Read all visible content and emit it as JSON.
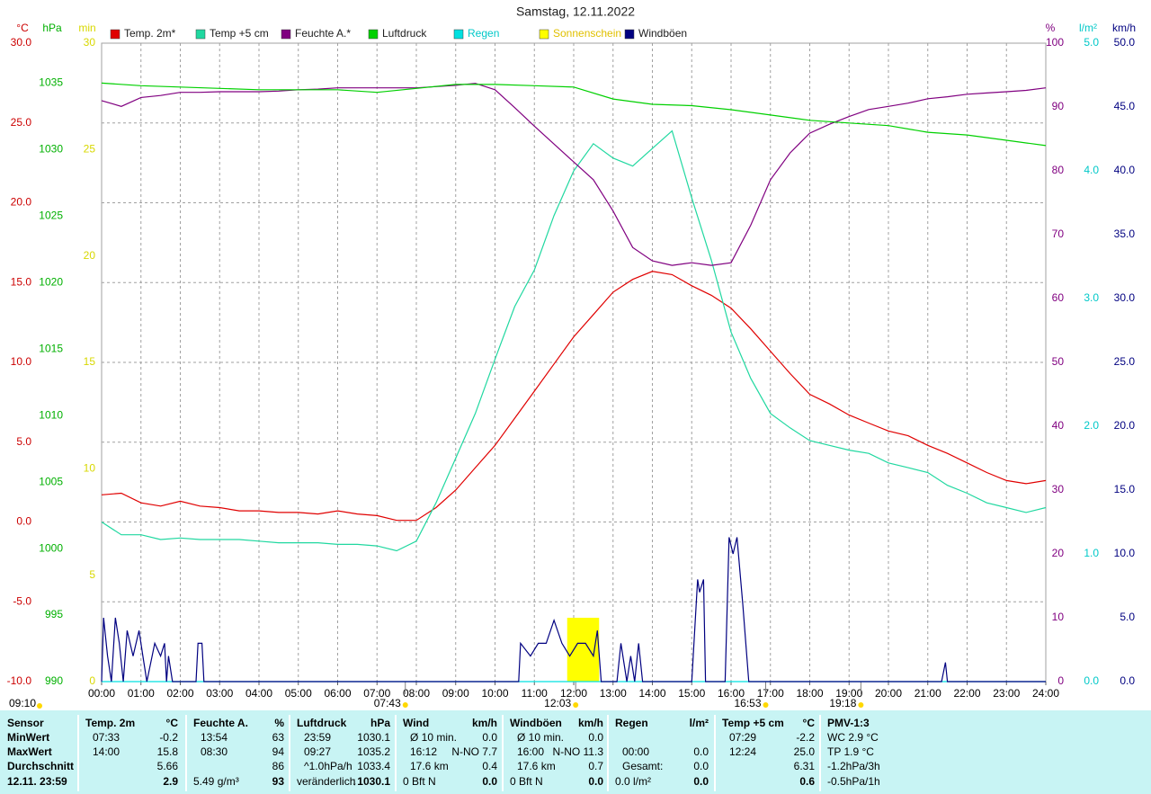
{
  "chart_data": {
    "type": "line",
    "title": "Samstag, 12.11.2022",
    "grid": true,
    "xlim": [
      0,
      24
    ],
    "xticks": [
      {
        "value": 0,
        "label": "00:00"
      },
      {
        "value": 1,
        "label": "01:00"
      },
      {
        "value": 2,
        "label": "02:00"
      },
      {
        "value": 3,
        "label": "03:00"
      },
      {
        "value": 4,
        "label": "04:00"
      },
      {
        "value": 5,
        "label": "05:00"
      },
      {
        "value": 6,
        "label": "06:00"
      },
      {
        "value": 7,
        "label": "07:00"
      },
      {
        "value": 8,
        "label": "08:00"
      },
      {
        "value": 9,
        "label": "09:00"
      },
      {
        "value": 10,
        "label": "10:00"
      },
      {
        "value": 11,
        "label": "11:00"
      },
      {
        "value": 12,
        "label": "12:00"
      },
      {
        "value": 13,
        "label": "13:00"
      },
      {
        "value": 14,
        "label": "14:00"
      },
      {
        "value": 15,
        "label": "15:00"
      },
      {
        "value": 16,
        "label": "16:00"
      },
      {
        "value": 17,
        "label": "17:00"
      },
      {
        "value": 18,
        "label": "18:00"
      },
      {
        "value": 19,
        "label": "19:00"
      },
      {
        "value": 20,
        "label": "20:00"
      },
      {
        "value": 21,
        "label": "21:00"
      },
      {
        "value": 22,
        "label": "22:00"
      },
      {
        "value": 23,
        "label": "23:00"
      },
      {
        "value": 24,
        "label": "24:00"
      }
    ],
    "x": [
      0,
      0.5,
      1,
      1.5,
      2,
      2.5,
      3,
      3.5,
      4,
      4.5,
      5,
      5.5,
      6,
      6.5,
      7,
      7.5,
      8,
      8.5,
      9,
      9.5,
      10,
      10.5,
      11,
      11.5,
      12,
      12.5,
      13,
      13.5,
      14,
      14.5,
      15,
      15.5,
      16,
      16.5,
      17,
      17.5,
      18,
      18.5,
      19,
      19.5,
      20,
      20.5,
      21,
      21.5,
      22,
      22.5,
      23,
      23.5,
      24
    ],
    "axes": {
      "y": {
        "label": "°C",
        "color": "#cc0000",
        "lim": [
          -10,
          30
        ],
        "ticks": [
          {
            "value": 30,
            "label": "30.0"
          },
          {
            "value": 25,
            "label": "25.0"
          },
          {
            "value": 20,
            "label": "20.0"
          },
          {
            "value": 15,
            "label": "15.0"
          },
          {
            "value": 10,
            "label": "10.0"
          },
          {
            "value": 5,
            "label": "5.0"
          },
          {
            "value": 0,
            "label": "0.0"
          },
          {
            "value": -5,
            "label": "-5.0"
          },
          {
            "value": -10,
            "label": "-10.0"
          }
        ]
      },
      "y2": {
        "label": "hPa",
        "color": "#00b000",
        "lim": [
          990,
          1038
        ],
        "ticks": [
          1035,
          1030,
          1025,
          1020,
          1015,
          1010,
          1005,
          1000,
          995,
          990
        ]
      },
      "y3": {
        "label": "min",
        "color": "#d8d800",
        "lim": [
          0,
          30
        ],
        "ticks": [
          30,
          25,
          20,
          15,
          10,
          5,
          0
        ]
      },
      "y4": {
        "label": "%",
        "color": "#800080",
        "lim": [
          0,
          100
        ],
        "ticks": [
          100,
          90,
          80,
          70,
          60,
          50,
          40,
          30,
          20,
          10,
          0
        ]
      },
      "y5": {
        "label": "l/m²",
        "color": "#00c8c8",
        "lim": [
          0,
          5
        ],
        "ticks": [
          {
            "value": 5,
            "label": "5.0"
          },
          {
            "value": 4,
            "label": "4.0"
          },
          {
            "value": 3,
            "label": "3.0"
          },
          {
            "value": 2,
            "label": "2.0"
          },
          {
            "value": 1,
            "label": "1.0"
          },
          {
            "value": 0,
            "label": "0.0"
          }
        ]
      },
      "y6": {
        "label": "km/h",
        "color": "#000080",
        "lim": [
          0,
          50
        ],
        "ticks": [
          {
            "value": 50,
            "label": "50.0"
          },
          {
            "value": 45,
            "label": "45.0"
          },
          {
            "value": 40,
            "label": "40.0"
          },
          {
            "value": 35,
            "label": "35.0"
          },
          {
            "value": 30,
            "label": "30.0"
          },
          {
            "value": 25,
            "label": "25.0"
          },
          {
            "value": 20,
            "label": "20.0"
          },
          {
            "value": 15,
            "label": "15.0"
          },
          {
            "value": 10,
            "label": "10.0"
          },
          {
            "value": 5,
            "label": "5.0"
          },
          {
            "value": 0,
            "label": "0.0"
          }
        ]
      }
    },
    "series": [
      {
        "name": "Temp. 2m*",
        "color": "#e00000",
        "axis": "y",
        "values": [
          1.7,
          1.8,
          1.2,
          1.0,
          1.3,
          1.0,
          0.9,
          0.7,
          0.7,
          0.6,
          0.6,
          0.5,
          0.7,
          0.5,
          0.4,
          0.1,
          0.1,
          0.9,
          2.0,
          3.4,
          4.8,
          6.5,
          8.2,
          9.9,
          11.6,
          13.0,
          14.4,
          15.2,
          15.7,
          15.5,
          14.8,
          14.2,
          13.4,
          12.1,
          10.7,
          9.3,
          8.0,
          7.4,
          6.7,
          6.2,
          5.7,
          5.4,
          4.8,
          4.3,
          3.7,
          3.1,
          2.6,
          2.4,
          2.6
        ]
      },
      {
        "name": "Temp +5 cm",
        "color": "#20d8a0",
        "axis": "y",
        "values": [
          0.0,
          -0.8,
          -0.8,
          -1.1,
          -1.0,
          -1.1,
          -1.1,
          -1.1,
          -1.2,
          -1.3,
          -1.3,
          -1.3,
          -1.4,
          -1.4,
          -1.5,
          -1.8,
          -1.2,
          1.2,
          4.0,
          6.8,
          10.2,
          13.5,
          15.8,
          19.2,
          22.0,
          23.7,
          22.8,
          22.3,
          23.4,
          24.5,
          20.3,
          16.4,
          11.9,
          9.0,
          6.8,
          5.9,
          5.1,
          4.8,
          4.5,
          4.3,
          3.7,
          3.4,
          3.1,
          2.3,
          1.8,
          1.2,
          0.9,
          0.6,
          0.9
        ]
      },
      {
        "name": "Feuchte A.*",
        "color": "#800080",
        "axis": "y4",
        "values": [
          91.0,
          90.1,
          91.5,
          91.8,
          92.3,
          92.3,
          92.4,
          92.4,
          92.4,
          92.5,
          92.7,
          92.8,
          93.0,
          93.0,
          93.0,
          93.0,
          93.0,
          93.2,
          93.4,
          93.7,
          92.7,
          89.9,
          87.0,
          84.2,
          81.4,
          78.6,
          73.7,
          68.0,
          65.9,
          65.2,
          65.6,
          65.2,
          65.6,
          71.5,
          78.6,
          82.8,
          85.9,
          87.3,
          88.5,
          89.6,
          90.1,
          90.6,
          91.3,
          91.6,
          92.0,
          92.2,
          92.4,
          92.6,
          93.0
        ]
      },
      {
        "name": "Luftdruck",
        "color": "#00d000",
        "axis": "y2",
        "x": [
          0,
          1,
          2,
          3,
          4,
          5,
          6,
          7,
          8,
          9,
          10,
          11,
          12,
          13,
          14,
          15,
          16,
          17,
          18,
          19,
          20,
          21,
          22,
          23,
          24
        ],
        "values": [
          1035.0,
          1034.8,
          1034.7,
          1034.6,
          1034.5,
          1034.5,
          1034.5,
          1034.3,
          1034.6,
          1034.9,
          1034.9,
          1034.8,
          1034.7,
          1033.8,
          1033.4,
          1033.3,
          1033.0,
          1032.6,
          1032.2,
          1032.0,
          1031.8,
          1031.3,
          1031.1,
          1030.7,
          1030.3
        ]
      },
      {
        "name": "Regen",
        "color": "#00e0e0",
        "axis": "y5",
        "x": [
          0,
          24
        ],
        "values": [
          0,
          0
        ]
      },
      {
        "name": "Sonnenschein",
        "color": "#ffff00",
        "axis": "y3",
        "type": "bar",
        "x": [
          11.88,
          11.96,
          12.04,
          12.12,
          12.2,
          12.28,
          12.36,
          12.44,
          12.52,
          12.6
        ],
        "values": [
          3,
          3,
          3,
          3,
          3,
          3,
          3,
          3,
          3,
          3
        ]
      },
      {
        "name": "Windböen",
        "color": "#000080",
        "axis": "y6",
        "x": [
          0,
          0.05,
          0.15,
          0.25,
          0.35,
          0.45,
          0.55,
          0.65,
          0.8,
          0.95,
          1.05,
          1.15,
          1.35,
          1.5,
          1.6,
          1.65,
          1.7,
          1.8,
          2.4,
          2.45,
          2.55,
          2.6,
          10.6,
          10.65,
          10.9,
          11.1,
          11.3,
          11.5,
          11.7,
          11.9,
          12.1,
          12.3,
          12.5,
          12.6,
          12.7,
          13.1,
          13.2,
          13.35,
          13.45,
          13.55,
          13.65,
          13.75,
          15.0,
          15.15,
          15.2,
          15.3,
          15.35,
          15.85,
          15.95,
          16.05,
          16.15,
          16.3,
          16.45,
          21.35,
          21.45,
          21.5,
          24
        ],
        "values": [
          0,
          5,
          2,
          0,
          5,
          3,
          0,
          4,
          2,
          4,
          2,
          0,
          3,
          2,
          3,
          0,
          2,
          0,
          0,
          3,
          3,
          0,
          0,
          3,
          2,
          3,
          3,
          4.8,
          3,
          2,
          3,
          3,
          2,
          4,
          0,
          0,
          3,
          0,
          2,
          0,
          3,
          0,
          0,
          8,
          7,
          8,
          0,
          0,
          11.3,
          10,
          11.3,
          6,
          0,
          0,
          1.5,
          0,
          0
        ]
      }
    ],
    "sun_times": [
      {
        "x": 7.72,
        "label": "07:43"
      },
      {
        "x": 12.05,
        "label": "12:03"
      },
      {
        "x": 16.88,
        "label": "16:53"
      },
      {
        "x": 19.3,
        "label": "19:18"
      }
    ],
    "moon_label": "09:10"
  },
  "summary": {
    "labels": [
      "Sensor",
      "MinWert",
      "MaxWert",
      "Durchschnitt",
      "12.11. 23:59"
    ],
    "columns": [
      {
        "name": "Temp. 2m",
        "unit": "°C",
        "rows": [
          {
            "left": "07:33",
            "right": "-0.2"
          },
          {
            "left": "14:00",
            "right": "15.8"
          },
          {
            "right": "5.66"
          },
          {
            "right": "2.9"
          }
        ]
      },
      {
        "name": "Feuchte A.",
        "unit": "%",
        "rows": [
          {
            "left": "13:54",
            "right": "63"
          },
          {
            "left": "08:30",
            "right": "94"
          },
          {
            "right": "86"
          },
          {
            "left": "5.49 g/m³",
            "right": "93"
          }
        ]
      },
      {
        "name": "Luftdruck",
        "unit": "hPa",
        "rows": [
          {
            "left": "23:59",
            "right": "1030.1"
          },
          {
            "left": "09:27",
            "right": "1035.2"
          },
          {
            "left": "^1.0hPa/h",
            "right": "1033.4"
          },
          {
            "left": "veränderlich",
            "right": "↓1030.1"
          }
        ]
      },
      {
        "name": "Wind",
        "unit": "km/h",
        "rows": [
          {
            "left": "Ø 10 min.",
            "right": "0.0"
          },
          {
            "left": "16:12",
            "right": "N-NO 7.7"
          },
          {
            "left": "17.6 km",
            "right": "0.4"
          },
          {
            "left": "0 Bft N",
            "right": "0.0"
          }
        ]
      },
      {
        "name": "Windböen",
        "unit": "km/h",
        "rows": [
          {
            "left": "Ø 10 min.",
            "right": "0.0"
          },
          {
            "left": "16:00",
            "right": "N-NO 11.3"
          },
          {
            "left": "17.6 km",
            "right": "0.7"
          },
          {
            "left": "0 Bft N",
            "right": "0.0"
          }
        ]
      },
      {
        "name": "Regen",
        "unit": "l/m²",
        "rows": [
          {},
          {
            "left": "00:00",
            "right": "0.0"
          },
          {
            "left": "Gesamt:",
            "right": "0.0"
          },
          {
            "left": "0.0 l/m²",
            "right": "0.0"
          }
        ]
      },
      {
        "name": "Temp +5 cm",
        "unit": "°C",
        "rows": [
          {
            "left": "07:29",
            "right": "-2.2"
          },
          {
            "left": "12:24",
            "right": "25.0"
          },
          {
            "right": "6.31"
          },
          {
            "right": "0.6"
          }
        ]
      },
      {
        "name": "PMV-1:3",
        "rows": [
          {
            "left": "WC 2.9 °C"
          },
          {
            "left": "TP 1.9 °C"
          },
          {
            "left": "-1.2hPa/3h"
          },
          {
            "left": "-0.5hPa/1h"
          }
        ]
      }
    ]
  }
}
